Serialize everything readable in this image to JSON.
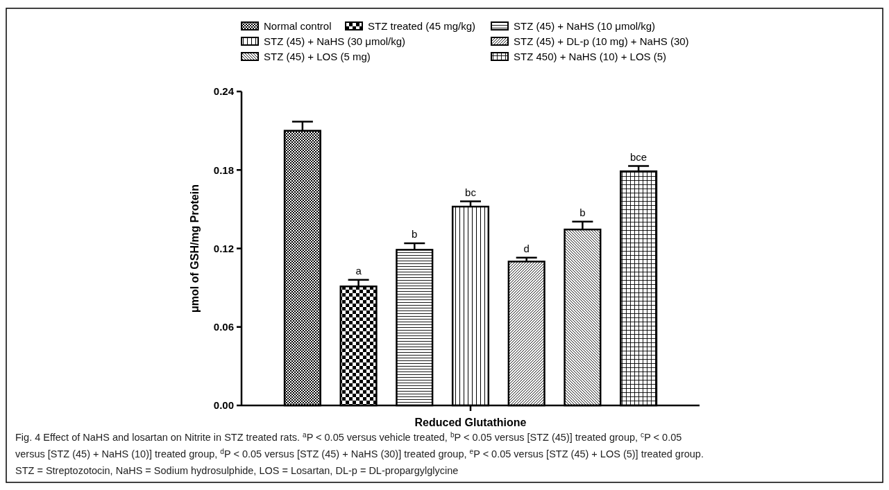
{
  "chart_data": {
    "type": "bar",
    "categories": [
      "Reduced Glutathione"
    ],
    "ylabel": "μmol of GSH/mg Protein",
    "ylim": [
      0,
      0.24
    ],
    "yticks": [
      {
        "value": 0,
        "label": "0.00"
      },
      0.06,
      0.12,
      0.18,
      0.24
    ],
    "legend": "top",
    "grid": false,
    "series": [
      {
        "name": "Normal control",
        "color": "#000000",
        "values": [
          0.21
        ],
        "errors": [
          0.007
        ]
      },
      {
        "name": "STZ treated (45 mg/kg)",
        "color": "#000000",
        "values": [
          0.091
        ],
        "errors": [
          0.005
        ]
      },
      {
        "name": "STZ (45) + NaHS (10 μmol/kg)",
        "color": "#000000",
        "values": [
          0.119
        ],
        "errors": [
          0.005
        ]
      },
      {
        "name": "STZ (45) + NaHS (30 μmol/kg)",
        "color": "#000000",
        "values": [
          0.152
        ],
        "errors": [
          0.004
        ]
      },
      {
        "name": "STZ (45) + DL-p (10 mg) + NaHS (30)",
        "color": "#000000",
        "values": [
          0.11
        ],
        "errors": [
          0.003
        ]
      },
      {
        "name": "STZ (45) + LOS (5 mg)",
        "color": "#000000",
        "values": [
          0.1345
        ],
        "errors": [
          0.006
        ]
      },
      {
        "name": "STZ 450) + NaHS (10) + LOS (5)",
        "color": "#000000",
        "values": [
          0.179
        ],
        "errors": [
          0.004
        ]
      }
    ],
    "annotations": [
      "a",
      "b",
      "bc",
      "d",
      "b",
      "bce",
      "Fig. 4 Effect of NaHS and losartan on Nitrite in STZ treated rats. $^{a}$P < 0.05 versus vehicle treated, $^{b}$P < 0.05 versus [STZ (45)] treated group, $^{c}$P < 0.05",
      "versus [STZ (45) + NaHS (10)] treated group, $^{d}$P < 0.05 versus [STZ (45) + NaHS (30)] treated group, $^{e}$P < 0.05 versus [STZ (45) + LOS (5)] treated group.",
      "STZ = Streptozotocin, NaHS = Sodium hydrosulphide, LOS = Losartan, DL-p = DL-propargylglycine"
    ]
  }
}
